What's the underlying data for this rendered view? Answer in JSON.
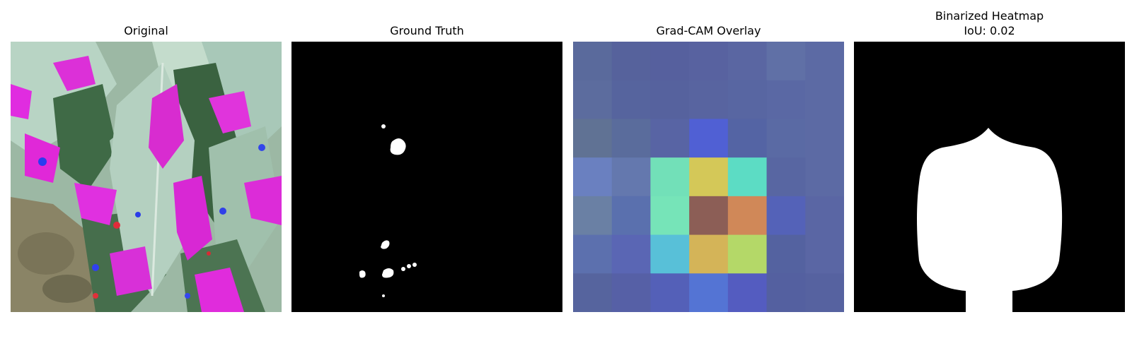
{
  "panels": [
    {
      "id": "original",
      "title": "Original",
      "icon": "leaf-photo"
    },
    {
      "id": "ground-truth",
      "title": "Ground Truth",
      "icon": "mask-image"
    },
    {
      "id": "gradcam",
      "title": "Grad-CAM Overlay",
      "icon": "heatmap-overlay"
    },
    {
      "id": "binarized",
      "title": "Binarized Heatmap",
      "subtitle": "IoU: 0.02",
      "icon": "binary-mask"
    }
  ],
  "gradcam_grid": {
    "rows": 7,
    "cols": 7,
    "colors": [
      [
        "#5a6a9c",
        "#56629c",
        "#56609e",
        "#5862a0",
        "#5a66a2",
        "#6070a6",
        "#5c6aa4"
      ],
      [
        "#5c6c9e",
        "#56649e",
        "#56629e",
        "#5864a0",
        "#5866a2",
        "#5a68a4",
        "#5c6aa4"
      ],
      [
        "#607294",
        "#5a6c9c",
        "#5864a4",
        "#5060d4",
        "#5464a4",
        "#5a6aa4",
        "#5c6aa4"
      ],
      [
        "#6a80c0",
        "#6478ae",
        "#72e0b8",
        "#d4c858",
        "#5cdcc4",
        "#5866a2",
        "#5c6aa4"
      ],
      [
        "#6a80a4",
        "#5a70ae",
        "#76e4b8",
        "#8c5e56",
        "#d08858",
        "#5462b8",
        "#5a66a4"
      ],
      [
        "#5c70ae",
        "#5a66b4",
        "#58c0d8",
        "#d4b458",
        "#b4d868",
        "#5462a0",
        "#5a66a4"
      ],
      [
        "#56649e",
        "#5660a6",
        "#5460b8",
        "#5474d4",
        "#545cc0",
        "#5460a0",
        "#5662a0"
      ]
    ]
  }
}
